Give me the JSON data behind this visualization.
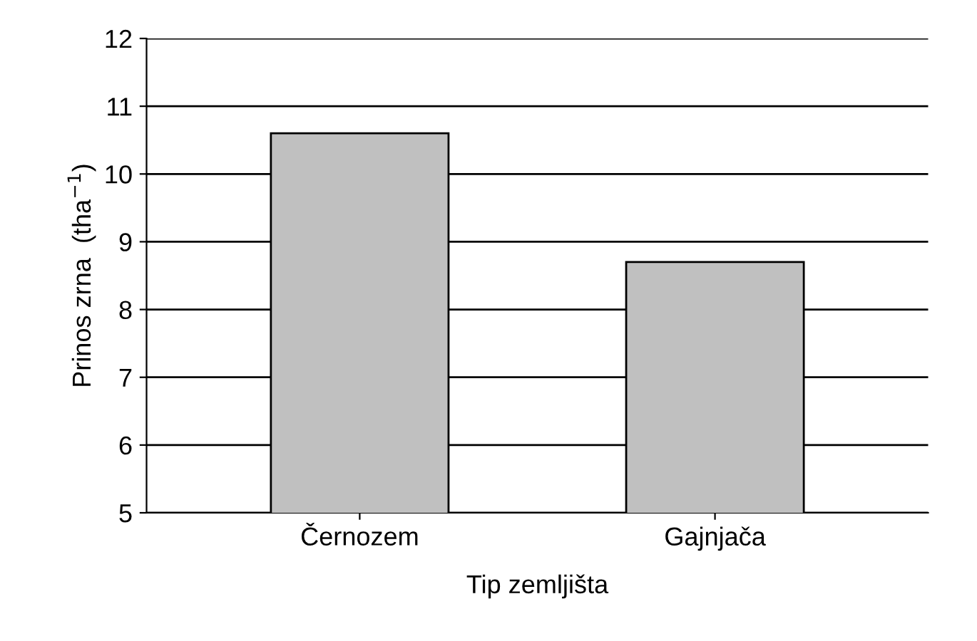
{
  "chart_data": {
    "type": "bar",
    "xlabel": "Tip zemljišta",
    "ylabel": "Prinos zrna  (tha$^{−1}$)",
    "categories": [
      "Černozem",
      "Gajnjača"
    ],
    "values": [
      10.6,
      8.7
    ],
    "color": "#c0c0c0",
    "ylim": [
      5,
      12
    ],
    "yticks": [
      5,
      6,
      7,
      8,
      9,
      10,
      11,
      12
    ],
    "grid": "y"
  }
}
